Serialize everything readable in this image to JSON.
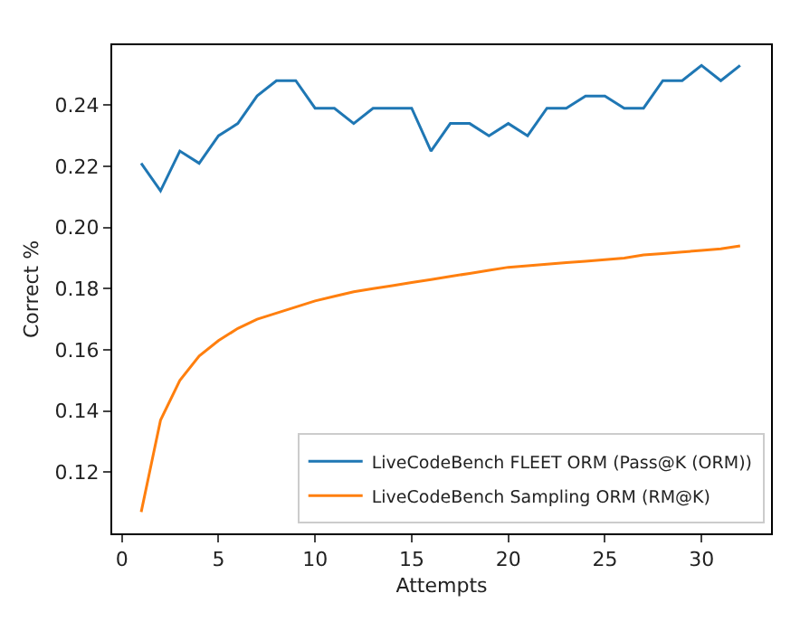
{
  "chart_data": {
    "type": "line",
    "xlabel": "Attempts",
    "ylabel": "Correct %",
    "x": [
      1,
      2,
      3,
      4,
      5,
      6,
      7,
      8,
      9,
      10,
      11,
      12,
      13,
      14,
      15,
      16,
      17,
      18,
      19,
      20,
      21,
      22,
      23,
      24,
      25,
      26,
      27,
      28,
      29,
      30,
      31,
      32
    ],
    "series": [
      {
        "name": "LiveCodeBench FLEET ORM (Pass@K (ORM))",
        "color": "#1f77b4",
        "values": [
          0.221,
          0.212,
          0.225,
          0.221,
          0.23,
          0.234,
          0.243,
          0.248,
          0.248,
          0.239,
          0.239,
          0.234,
          0.239,
          0.239,
          0.239,
          0.225,
          0.234,
          0.234,
          0.23,
          0.234,
          0.23,
          0.239,
          0.239,
          0.243,
          0.243,
          0.239,
          0.239,
          0.248,
          0.248,
          0.253,
          0.248,
          0.253
        ]
      },
      {
        "name": "LiveCodeBench Sampling ORM (RM@K)",
        "color": "#ff7f0e",
        "values": [
          0.107,
          0.137,
          0.15,
          0.158,
          0.163,
          0.167,
          0.17,
          0.172,
          0.174,
          0.176,
          0.1775,
          0.179,
          0.18,
          0.181,
          0.182,
          0.183,
          0.184,
          0.185,
          0.186,
          0.187,
          0.1875,
          0.188,
          0.1885,
          0.189,
          0.1895,
          0.19,
          0.191,
          0.1915,
          0.192,
          0.1925,
          0.193,
          0.194
        ]
      }
    ],
    "xlim": [
      -0.5,
      33.6
    ],
    "xticks": [
      0,
      5,
      10,
      15,
      20,
      25,
      30
    ],
    "ylim": [
      0.1,
      0.2596
    ],
    "yticks": [
      {
        "value": 0.12,
        "label": "0.12"
      },
      {
        "value": 0.14,
        "label": "0.14"
      },
      {
        "value": 0.16,
        "label": "0.16"
      },
      {
        "value": 0.18,
        "label": "0.18"
      },
      {
        "value": 0.2,
        "label": "0.20"
      },
      {
        "value": 0.22,
        "label": "0.22"
      },
      {
        "value": 0.24,
        "label": "0.24"
      }
    ],
    "legend": "bottom right",
    "marker": "none",
    "line_style": "solid"
  }
}
